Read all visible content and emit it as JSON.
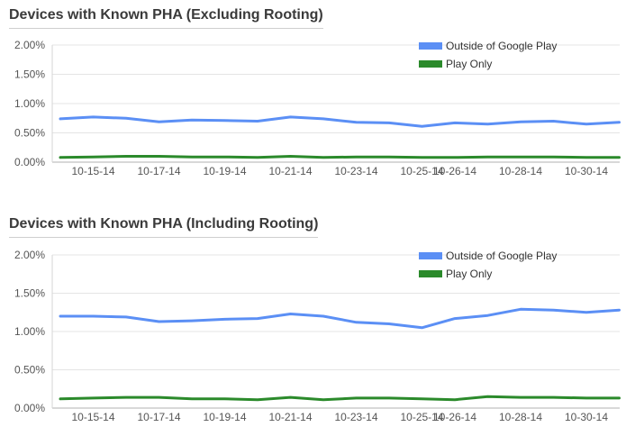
{
  "chart_data": [
    {
      "type": "line",
      "title": "Devices with Known PHA (Excluding Rooting)",
      "ylim": [
        0,
        2.0
      ],
      "y_ticks": [
        "0.00%",
        "0.50%",
        "1.00%",
        "1.50%",
        "2.00%"
      ],
      "x_tick_labels": [
        "10-15-14",
        "10-17-14",
        "10-19-14",
        "10-21-14",
        "10-23-14",
        "10-25-14",
        "10-26-14",
        "10-28-14",
        "10-30-14"
      ],
      "grid": true,
      "legend_position": "top-right",
      "series": [
        {
          "name": "Outside of Google Play",
          "color": "#5b8ff5",
          "values": [
            0.74,
            0.77,
            0.75,
            0.69,
            0.72,
            0.71,
            0.7,
            0.77,
            0.74,
            0.68,
            0.67,
            0.61,
            0.67,
            0.65,
            0.69,
            0.7,
            0.65,
            0.68
          ]
        },
        {
          "name": "Play Only",
          "color": "#2b8a2b",
          "values": [
            0.08,
            0.09,
            0.1,
            0.1,
            0.09,
            0.09,
            0.08,
            0.1,
            0.08,
            0.09,
            0.09,
            0.08,
            0.08,
            0.09,
            0.09,
            0.09,
            0.08,
            0.08
          ]
        }
      ]
    },
    {
      "type": "line",
      "title": "Devices with Known PHA (Including Rooting)",
      "ylim": [
        0,
        2.0
      ],
      "y_ticks": [
        "0.00%",
        "0.50%",
        "1.00%",
        "1.50%",
        "2.00%"
      ],
      "x_tick_labels": [
        "10-15-14",
        "10-17-14",
        "10-19-14",
        "10-21-14",
        "10-23-14",
        "10-25-14",
        "10-26-14",
        "10-28-14",
        "10-30-14"
      ],
      "grid": true,
      "legend_position": "top-right",
      "series": [
        {
          "name": "Outside of Google Play",
          "color": "#5b8ff5",
          "values": [
            1.2,
            1.2,
            1.19,
            1.13,
            1.14,
            1.16,
            1.17,
            1.23,
            1.2,
            1.12,
            1.1,
            1.05,
            1.17,
            1.21,
            1.29,
            1.28,
            1.25,
            1.28
          ]
        },
        {
          "name": "Play Only",
          "color": "#2b8a2b",
          "values": [
            0.12,
            0.13,
            0.14,
            0.14,
            0.12,
            0.12,
            0.11,
            0.14,
            0.11,
            0.13,
            0.13,
            0.12,
            0.11,
            0.15,
            0.14,
            0.14,
            0.13,
            0.13
          ]
        }
      ]
    }
  ]
}
